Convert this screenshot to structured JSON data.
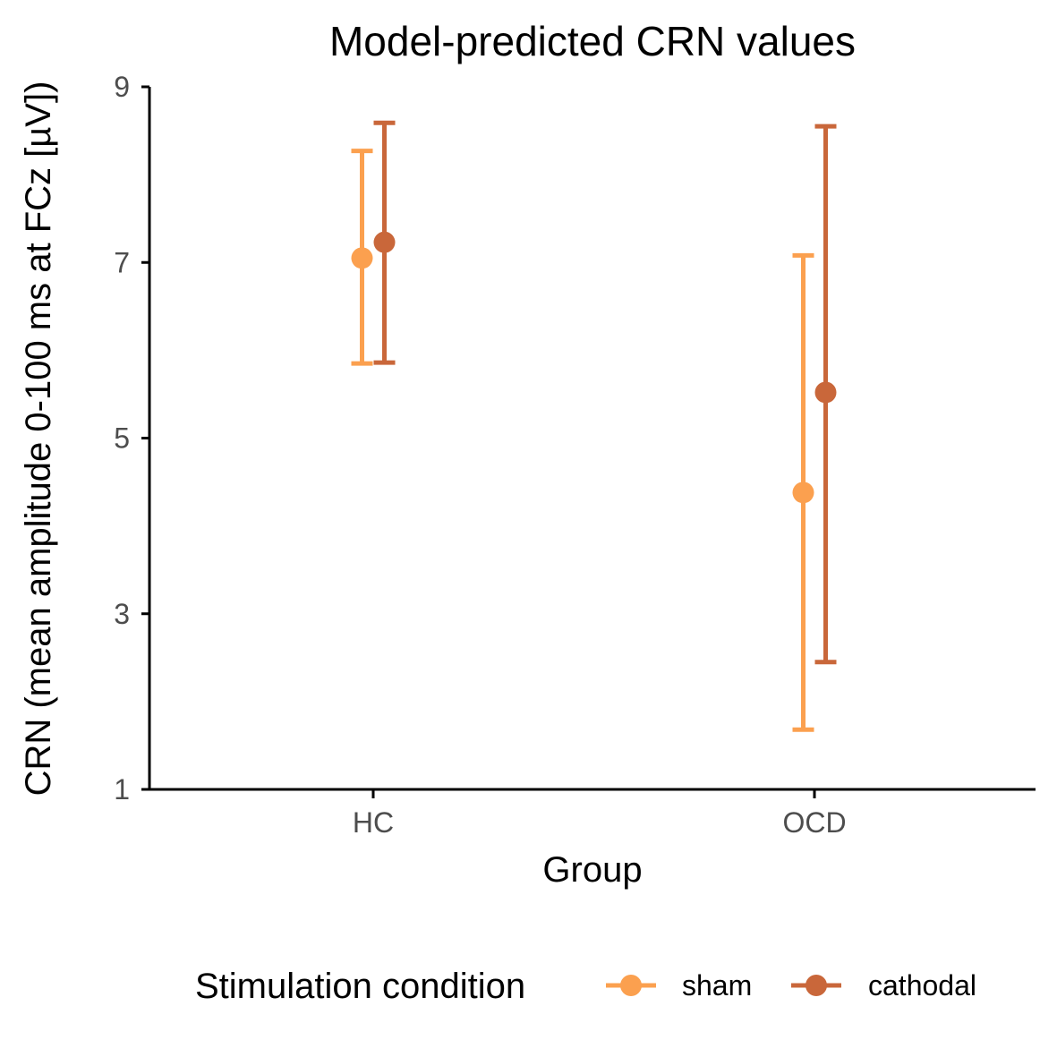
{
  "colors": {
    "sham": "#FBA04F",
    "cathodal": "#C9673A",
    "axis": "#000000",
    "tick_text": "#4d4d4d"
  },
  "chart_data": {
    "type": "scatter",
    "subtype": "point-with-errorbars",
    "title": "Model-predicted CRN values",
    "xlabel": "Group",
    "ylabel": "CRN (mean amplitude 0-100 ms at FCz [µV])",
    "categories": [
      "HC",
      "OCD"
    ],
    "ylim": [
      1,
      9
    ],
    "yticks": [
      "1",
      "3",
      "5",
      "7",
      "9"
    ],
    "grid": false,
    "legend": {
      "title": "Stimulation condition",
      "position": "bottom"
    },
    "series": [
      {
        "name": "sham",
        "color": "#FBA04F",
        "values": [
          7.05,
          4.38
        ],
        "lower": [
          5.85,
          1.68
        ],
        "upper": [
          8.27,
          7.08
        ]
      },
      {
        "name": "cathodal",
        "color": "#C9673A",
        "values": [
          7.23,
          5.52
        ],
        "lower": [
          5.86,
          2.45
        ],
        "upper": [
          8.59,
          8.55
        ]
      }
    ]
  }
}
